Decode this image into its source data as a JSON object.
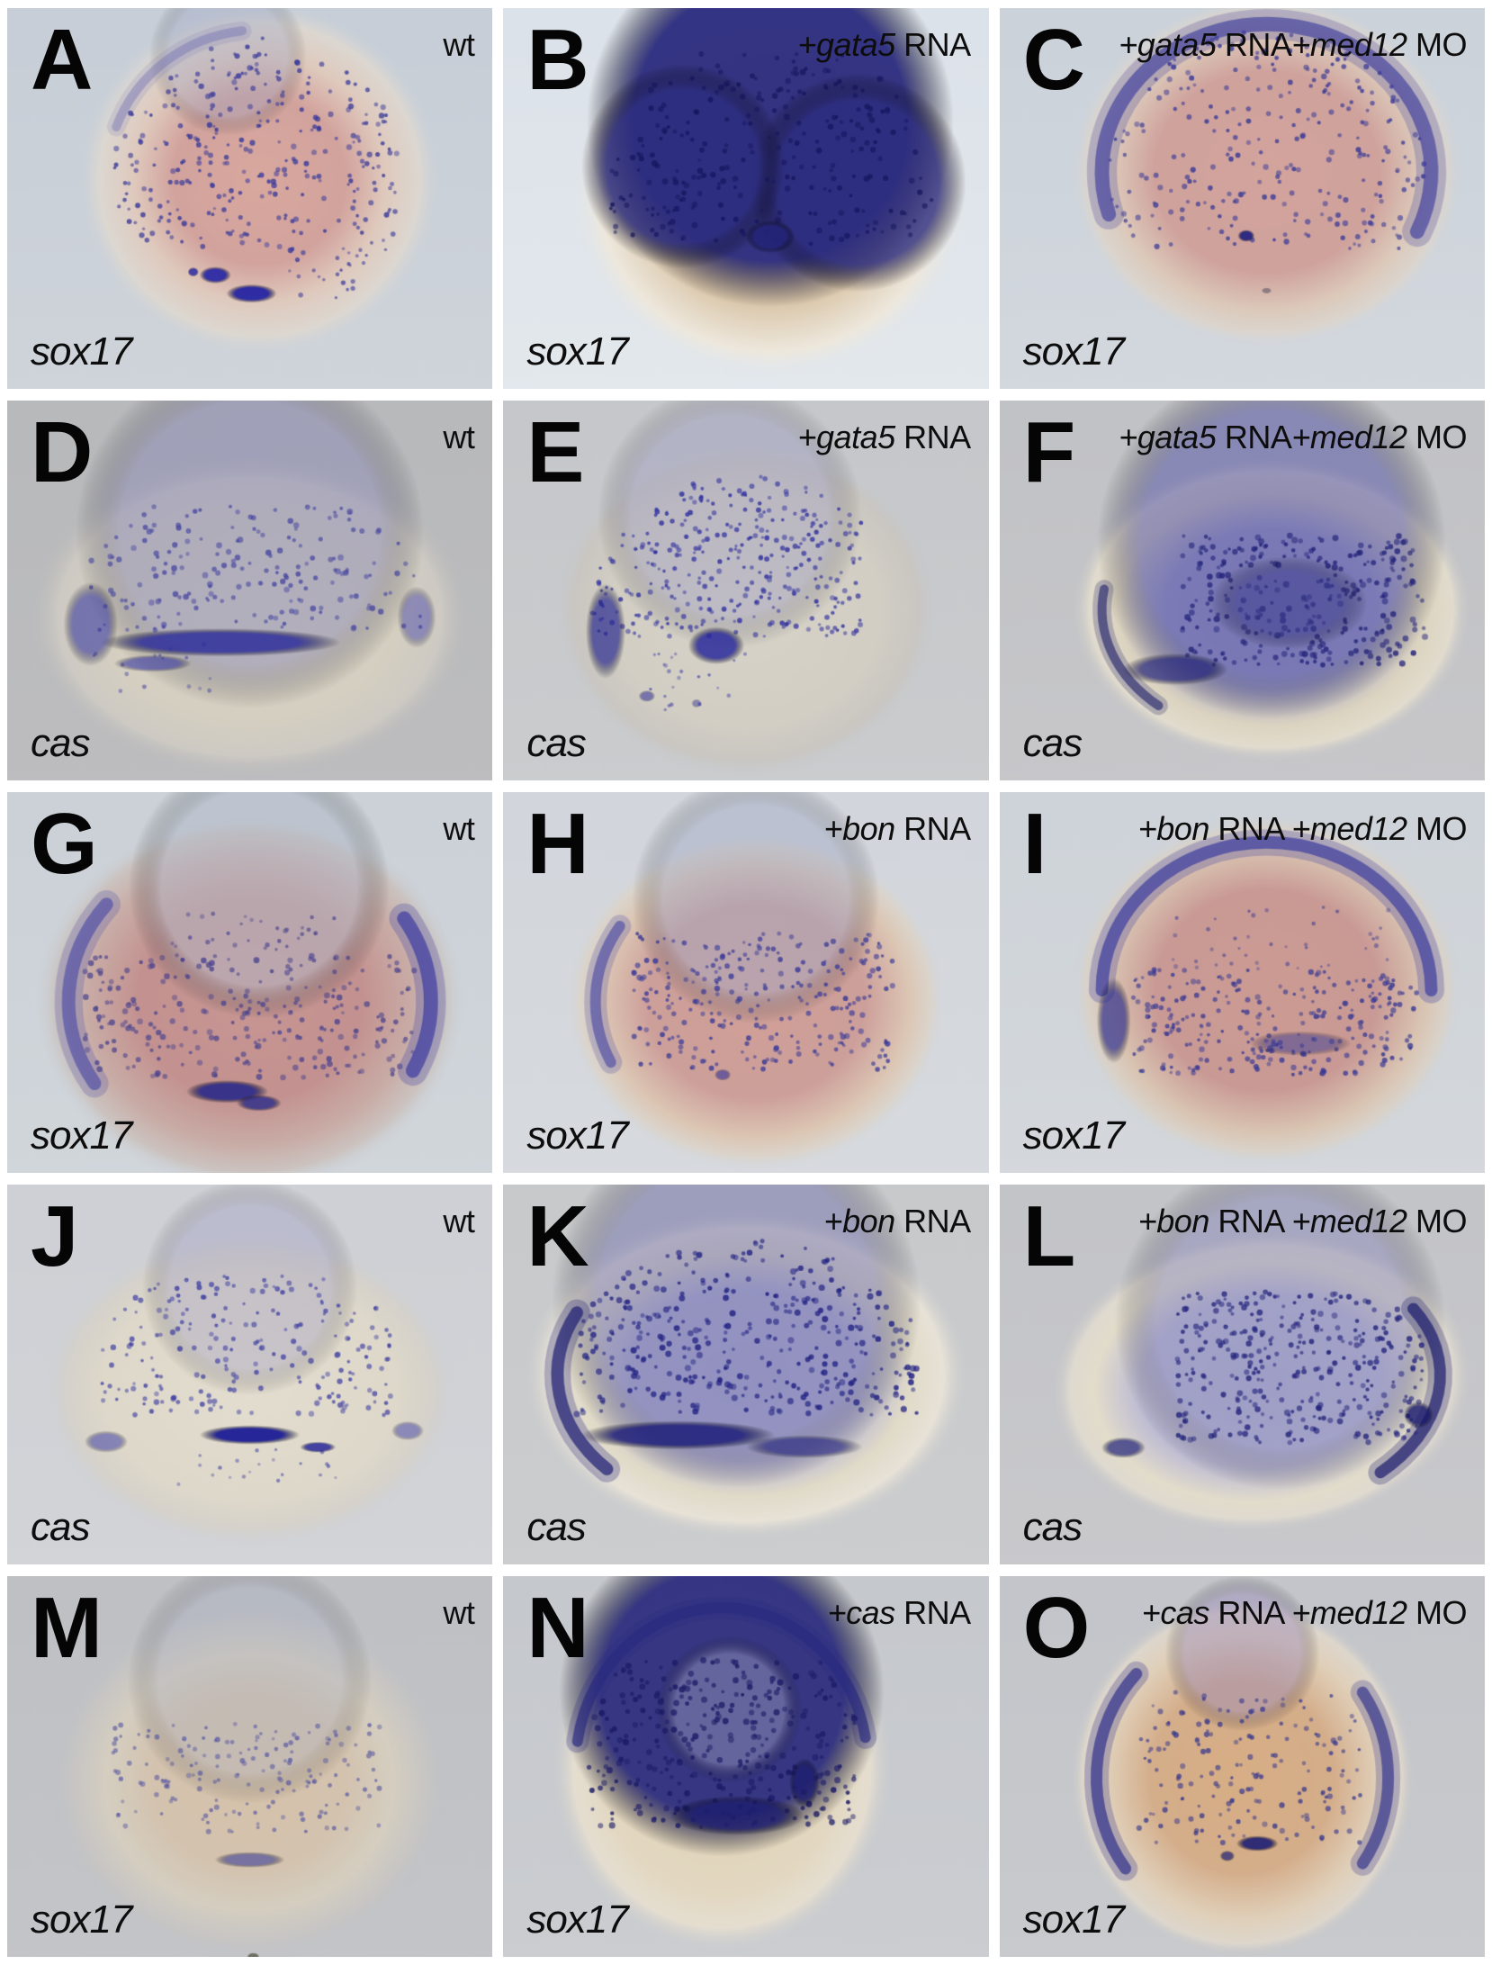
{
  "figure": {
    "rows": 5,
    "columns": 3,
    "stain_color": "#2d2d80",
    "panels": [
      {
        "letter": "A",
        "condition": "wt",
        "condition_parts": [
          {
            "text": "wt",
            "italic": false
          }
        ],
        "probe": "sox17"
      },
      {
        "letter": "B",
        "condition": "+gata5 RNA",
        "condition_parts": [
          {
            "text": "+gata5",
            "italic": true
          },
          {
            "text": " RNA",
            "italic": false
          }
        ],
        "probe": "sox17"
      },
      {
        "letter": "C",
        "condition": "+gata5 RNA+med12 MO",
        "condition_parts": [
          {
            "text": "+gata5",
            "italic": true
          },
          {
            "text": " RNA",
            "italic": false
          },
          {
            "text": "+med12",
            "italic": true
          },
          {
            "text": " MO",
            "italic": false
          }
        ],
        "probe": "sox17"
      },
      {
        "letter": "D",
        "condition": "wt",
        "condition_parts": [
          {
            "text": "wt",
            "italic": false
          }
        ],
        "probe": "cas"
      },
      {
        "letter": "E",
        "condition": "+gata5 RNA",
        "condition_parts": [
          {
            "text": "+gata5",
            "italic": true
          },
          {
            "text": " RNA",
            "italic": false
          }
        ],
        "probe": "cas"
      },
      {
        "letter": "F",
        "condition": "+gata5 RNA+med12 MO",
        "condition_parts": [
          {
            "text": "+gata5",
            "italic": true
          },
          {
            "text": " RNA",
            "italic": false
          },
          {
            "text": "+med12",
            "italic": true
          },
          {
            "text": " MO",
            "italic": false
          }
        ],
        "probe": "cas"
      },
      {
        "letter": "G",
        "condition": "wt",
        "condition_parts": [
          {
            "text": "wt",
            "italic": false
          }
        ],
        "probe": "sox17"
      },
      {
        "letter": "H",
        "condition": "+bon RNA",
        "condition_parts": [
          {
            "text": "+bon",
            "italic": true
          },
          {
            "text": " RNA",
            "italic": false
          }
        ],
        "probe": "sox17"
      },
      {
        "letter": "I",
        "condition": "+bon RNA +med12 MO",
        "condition_parts": [
          {
            "text": "+bon",
            "italic": true
          },
          {
            "text": " RNA ",
            "italic": false
          },
          {
            "text": "+med12",
            "italic": true
          },
          {
            "text": " MO",
            "italic": false
          }
        ],
        "probe": "sox17"
      },
      {
        "letter": "J",
        "condition": "wt",
        "condition_parts": [
          {
            "text": "wt",
            "italic": false
          }
        ],
        "probe": "cas"
      },
      {
        "letter": "K",
        "condition": "+bon RNA",
        "condition_parts": [
          {
            "text": "+bon",
            "italic": true
          },
          {
            "text": " RNA",
            "italic": false
          }
        ],
        "probe": "cas"
      },
      {
        "letter": "L",
        "condition": "+bon RNA +med12 MO",
        "condition_parts": [
          {
            "text": "+bon",
            "italic": true
          },
          {
            "text": " RNA ",
            "italic": false
          },
          {
            "text": "+med12",
            "italic": true
          },
          {
            "text": " MO",
            "italic": false
          }
        ],
        "probe": "cas"
      },
      {
        "letter": "M",
        "condition": "wt",
        "condition_parts": [
          {
            "text": "wt",
            "italic": false
          }
        ],
        "probe": "sox17"
      },
      {
        "letter": "N",
        "condition": "+cas RNA",
        "condition_parts": [
          {
            "text": "+cas",
            "italic": true
          },
          {
            "text": " RNA",
            "italic": false
          }
        ],
        "probe": "sox17"
      },
      {
        "letter": "O",
        "condition": "+cas RNA +med12 MO",
        "condition_parts": [
          {
            "text": "+cas",
            "italic": true
          },
          {
            "text": " RNA ",
            "italic": false
          },
          {
            "text": "+med12",
            "italic": true
          },
          {
            "text": " MO",
            "italic": false
          }
        ],
        "probe": "sox17"
      }
    ]
  }
}
